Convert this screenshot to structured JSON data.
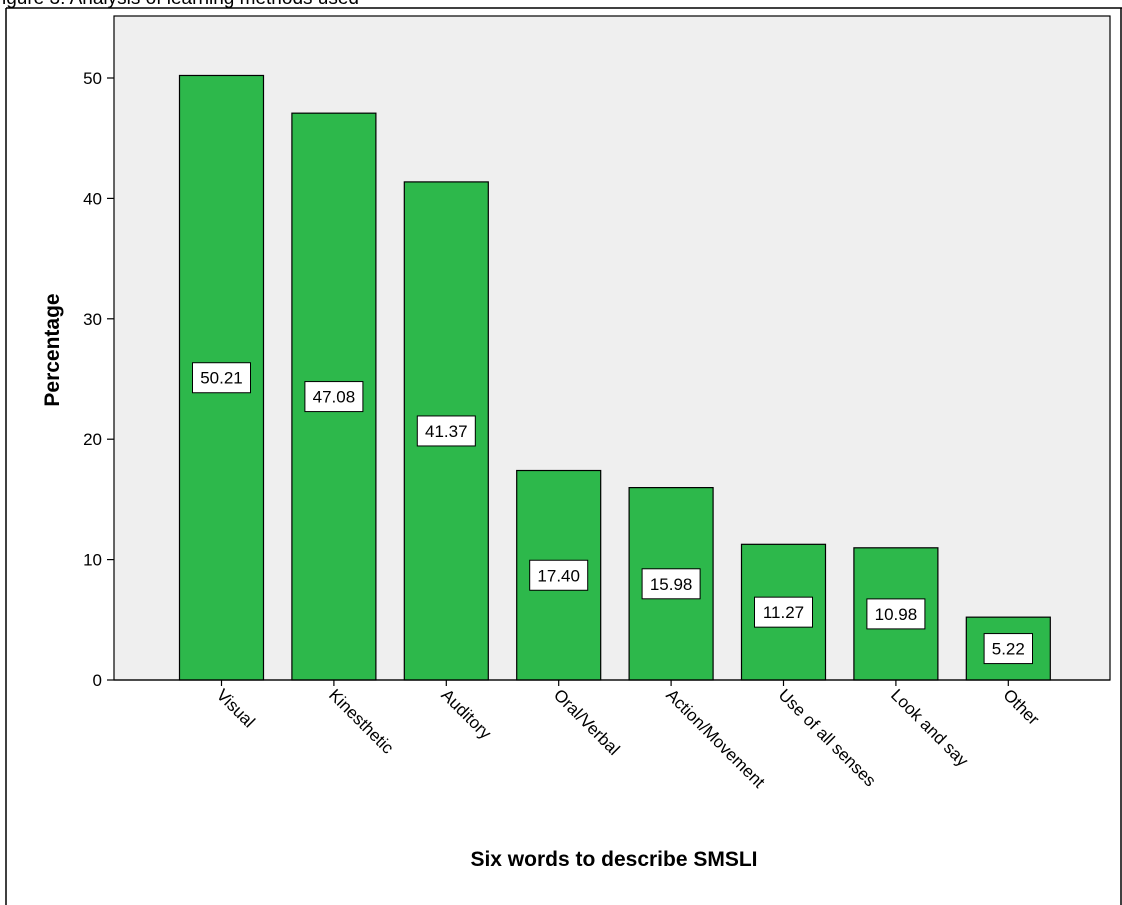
{
  "caption": "igure 3: Analysis of learning methods used",
  "chart_data": {
    "type": "bar",
    "categories": [
      "Visual",
      "Kinesthetic",
      "Auditory",
      "Oral/Verbal",
      "Action/Movement",
      "Use of all senses",
      "Look and say",
      "Other"
    ],
    "values": [
      50.21,
      47.08,
      41.37,
      17.4,
      15.98,
      11.27,
      10.98,
      5.22
    ],
    "data_labels": [
      "50.21",
      "47.08",
      "41.37",
      "17.40",
      "15.98",
      "11.27",
      "10.98",
      "5.22"
    ],
    "title": "",
    "xlabel": "Six words to describe SMSLI",
    "ylabel": "Percentage",
    "ylim": [
      0,
      55
    ],
    "yticks": [
      "0",
      "10",
      "20",
      "30",
      "40",
      "50"
    ],
    "ytick_values": [
      0,
      10,
      20,
      30,
      40,
      50
    ],
    "grid": false,
    "colors": {
      "bar": "#2db84b",
      "plot_background": "#efefef",
      "outline": "#000000"
    }
  }
}
